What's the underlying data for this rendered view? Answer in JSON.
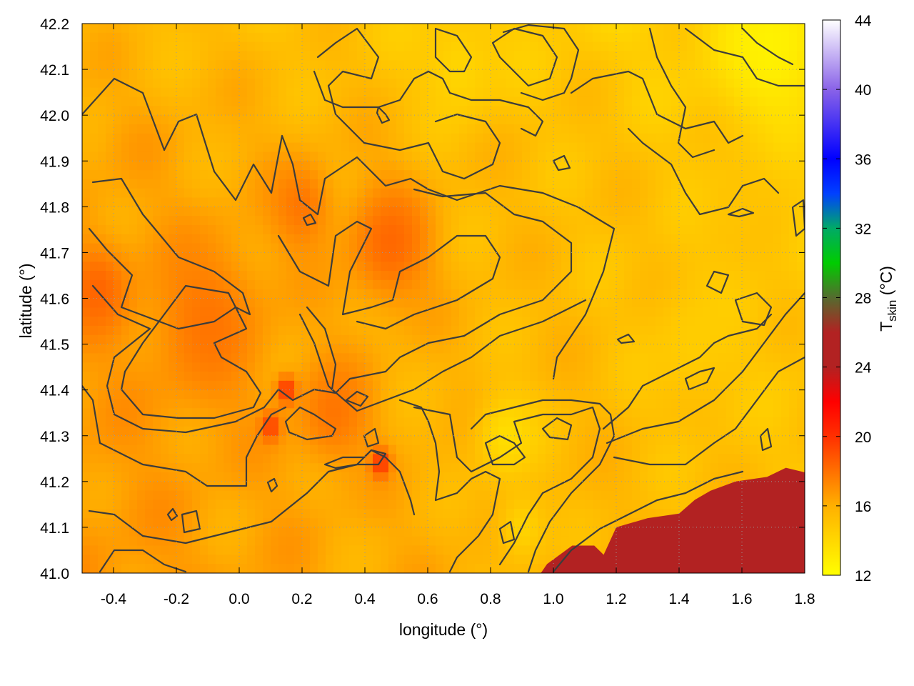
{
  "chart_data": {
    "type": "heatmap",
    "title": "",
    "xlabel": "longitude (°)",
    "ylabel": "latitude (°)",
    "colorbar_label_main": "T",
    "colorbar_label_sub": "skin",
    "colorbar_label_unit": " (°C)",
    "xlim": [
      -0.5,
      1.8
    ],
    "ylim": [
      41.0,
      42.2
    ],
    "xticks": [
      -0.4,
      -0.2,
      0.0,
      0.2,
      0.4,
      0.6,
      0.8,
      1.0,
      1.2,
      1.4,
      1.6,
      1.8
    ],
    "xtick_labels": [
      "-0.4",
      "-0.2",
      "0.0",
      "0.2",
      "0.4",
      "0.6",
      "0.8",
      "1.0",
      "1.2",
      "1.4",
      "1.6",
      "1.8"
    ],
    "yticks": [
      41.0,
      41.1,
      41.2,
      41.3,
      41.4,
      41.5,
      41.6,
      41.7,
      41.8,
      41.9,
      42.0,
      42.1,
      42.2
    ],
    "ytick_labels": [
      "41.0",
      "41.1",
      "41.2",
      "41.3",
      "41.4",
      "41.5",
      "41.6",
      "41.7",
      "41.8",
      "41.9",
      "42.0",
      "42.1",
      "42.2"
    ],
    "colorbar_range": [
      12,
      44
    ],
    "colorbar_ticks": [
      12,
      16,
      20,
      24,
      28,
      32,
      36,
      40,
      44
    ],
    "colorbar_tick_labels": [
      "12",
      "16",
      "20",
      "24",
      "28",
      "32",
      "36",
      "40",
      "44"
    ],
    "colormap": [
      {
        "value": 12,
        "color": "#ffff00"
      },
      {
        "value": 16,
        "color": "#ffb000"
      },
      {
        "value": 20,
        "color": "#ff3000"
      },
      {
        "value": 22,
        "color": "#ff0000"
      },
      {
        "value": 24,
        "color": "#b22222"
      },
      {
        "value": 26,
        "color": "#b22222"
      },
      {
        "value": 28,
        "color": "#556b2f"
      },
      {
        "value": 30,
        "color": "#00cc00"
      },
      {
        "value": 32,
        "color": "#00aa66"
      },
      {
        "value": 34,
        "color": "#0040ff"
      },
      {
        "value": 36,
        "color": "#0000ff"
      },
      {
        "value": 40,
        "color": "#8a63e8"
      },
      {
        "value": 44,
        "color": "#ffffff"
      }
    ],
    "grid": true,
    "sea_value": 25,
    "field_features": [
      {
        "lon": -0.45,
        "lat": 41.62,
        "value": 18.5,
        "radius": 0.1
      },
      {
        "lon": -0.1,
        "lat": 41.55,
        "value": 18.0,
        "radius": 0.18
      },
      {
        "lon": 0.48,
        "lat": 41.72,
        "value": 18.5,
        "radius": 0.14
      },
      {
        "lon": 0.2,
        "lat": 41.8,
        "value": 18.0,
        "radius": 0.1
      },
      {
        "lon": 0.3,
        "lat": 41.35,
        "value": 18.0,
        "radius": 0.12
      },
      {
        "lon": 0.85,
        "lat": 41.3,
        "value": 13.5,
        "radius": 0.1
      },
      {
        "lon": 0.9,
        "lat": 41.1,
        "value": 14.0,
        "radius": 0.08
      },
      {
        "lon": 1.7,
        "lat": 42.15,
        "value": 12.5,
        "radius": 0.18
      },
      {
        "lon": 0.7,
        "lat": 42.1,
        "value": 14.0,
        "radius": 0.12
      },
      {
        "lon": 1.45,
        "lat": 41.5,
        "value": 14.5,
        "radius": 0.15
      },
      {
        "lon": 1.6,
        "lat": 41.8,
        "value": 15.0,
        "radius": 0.15
      },
      {
        "lon": 0.15,
        "lat": 41.4,
        "value": 20.5,
        "radius": 0.03
      },
      {
        "lon": 0.45,
        "lat": 41.24,
        "value": 20.5,
        "radius": 0.03
      },
      {
        "lon": 0.1,
        "lat": 41.32,
        "value": 20.0,
        "radius": 0.03
      }
    ],
    "coastline": [
      [
        0.96,
        41.0
      ],
      [
        0.98,
        41.02
      ],
      [
        1.02,
        41.04
      ],
      [
        1.06,
        41.06
      ],
      [
        1.13,
        41.06
      ],
      [
        1.16,
        41.04
      ],
      [
        1.2,
        41.1
      ],
      [
        1.3,
        41.12
      ],
      [
        1.4,
        41.13
      ],
      [
        1.45,
        41.16
      ],
      [
        1.5,
        41.18
      ],
      [
        1.58,
        41.2
      ],
      [
        1.68,
        41.21
      ],
      [
        1.74,
        41.23
      ],
      [
        1.8,
        41.22
      ],
      [
        1.8,
        41.0
      ]
    ]
  }
}
